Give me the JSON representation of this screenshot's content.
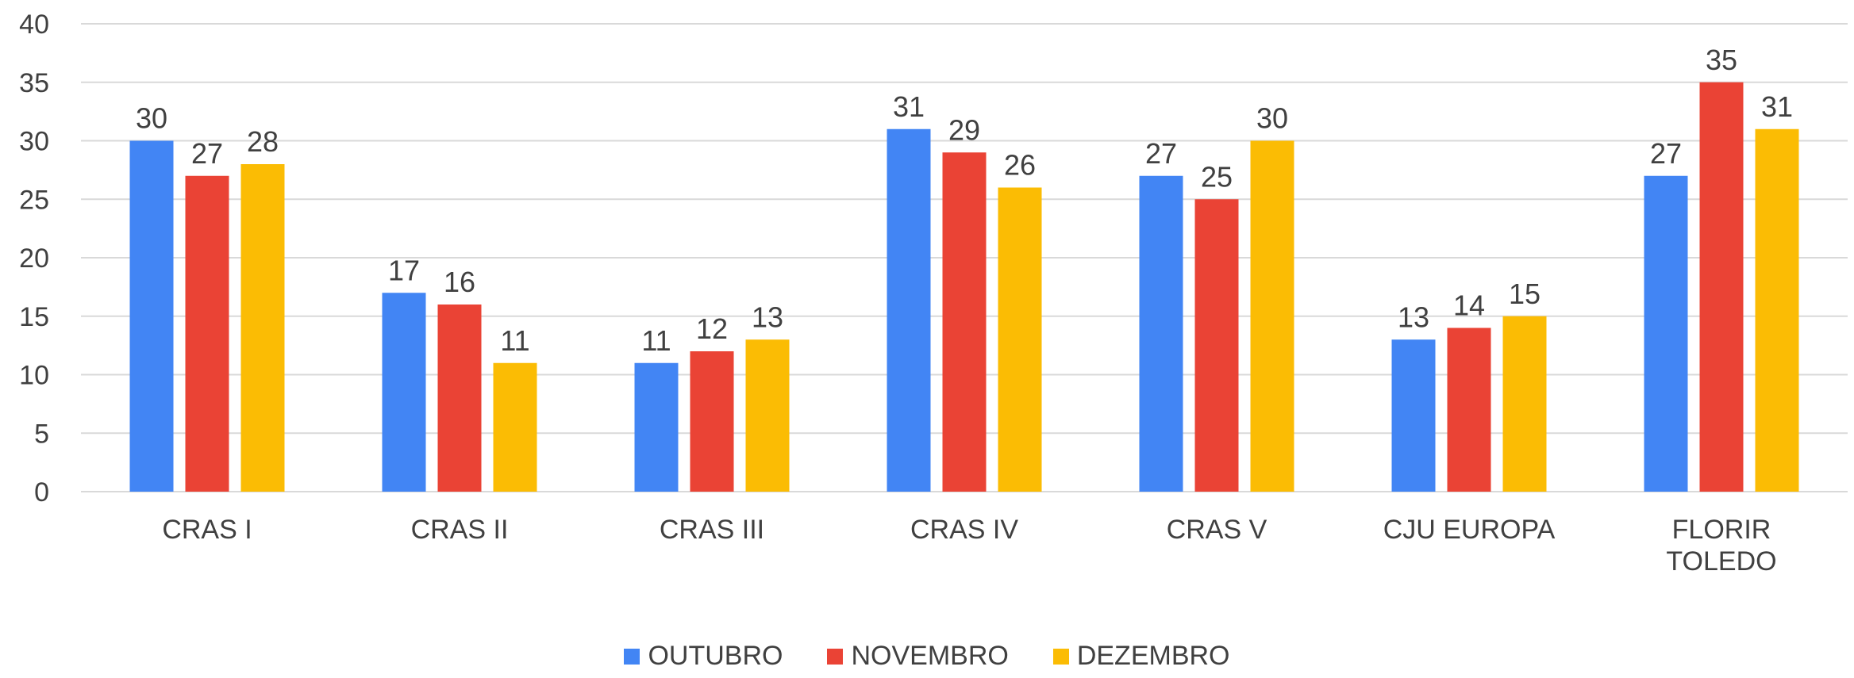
{
  "chart_data": {
    "type": "bar",
    "categories": [
      "CRAS I",
      "CRAS II",
      "CRAS III",
      "CRAS IV",
      "CRAS V",
      "CJU EUROPA",
      "FLORIR TOLEDO"
    ],
    "series": [
      {
        "name": "OUTUBRO",
        "color": "#4285f4",
        "values": [
          30,
          17,
          11,
          31,
          27,
          13,
          27
        ]
      },
      {
        "name": "NOVEMBRO",
        "color": "#ea4335",
        "values": [
          27,
          16,
          12,
          29,
          25,
          14,
          35
        ]
      },
      {
        "name": "DEZEMBRO",
        "color": "#fbbc04",
        "values": [
          28,
          11,
          13,
          26,
          30,
          15,
          31
        ]
      }
    ],
    "ylim": [
      0,
      40
    ],
    "yticks": [
      0,
      5,
      10,
      15,
      20,
      25,
      30,
      35,
      40
    ],
    "grid": true,
    "legend": "bottom"
  }
}
